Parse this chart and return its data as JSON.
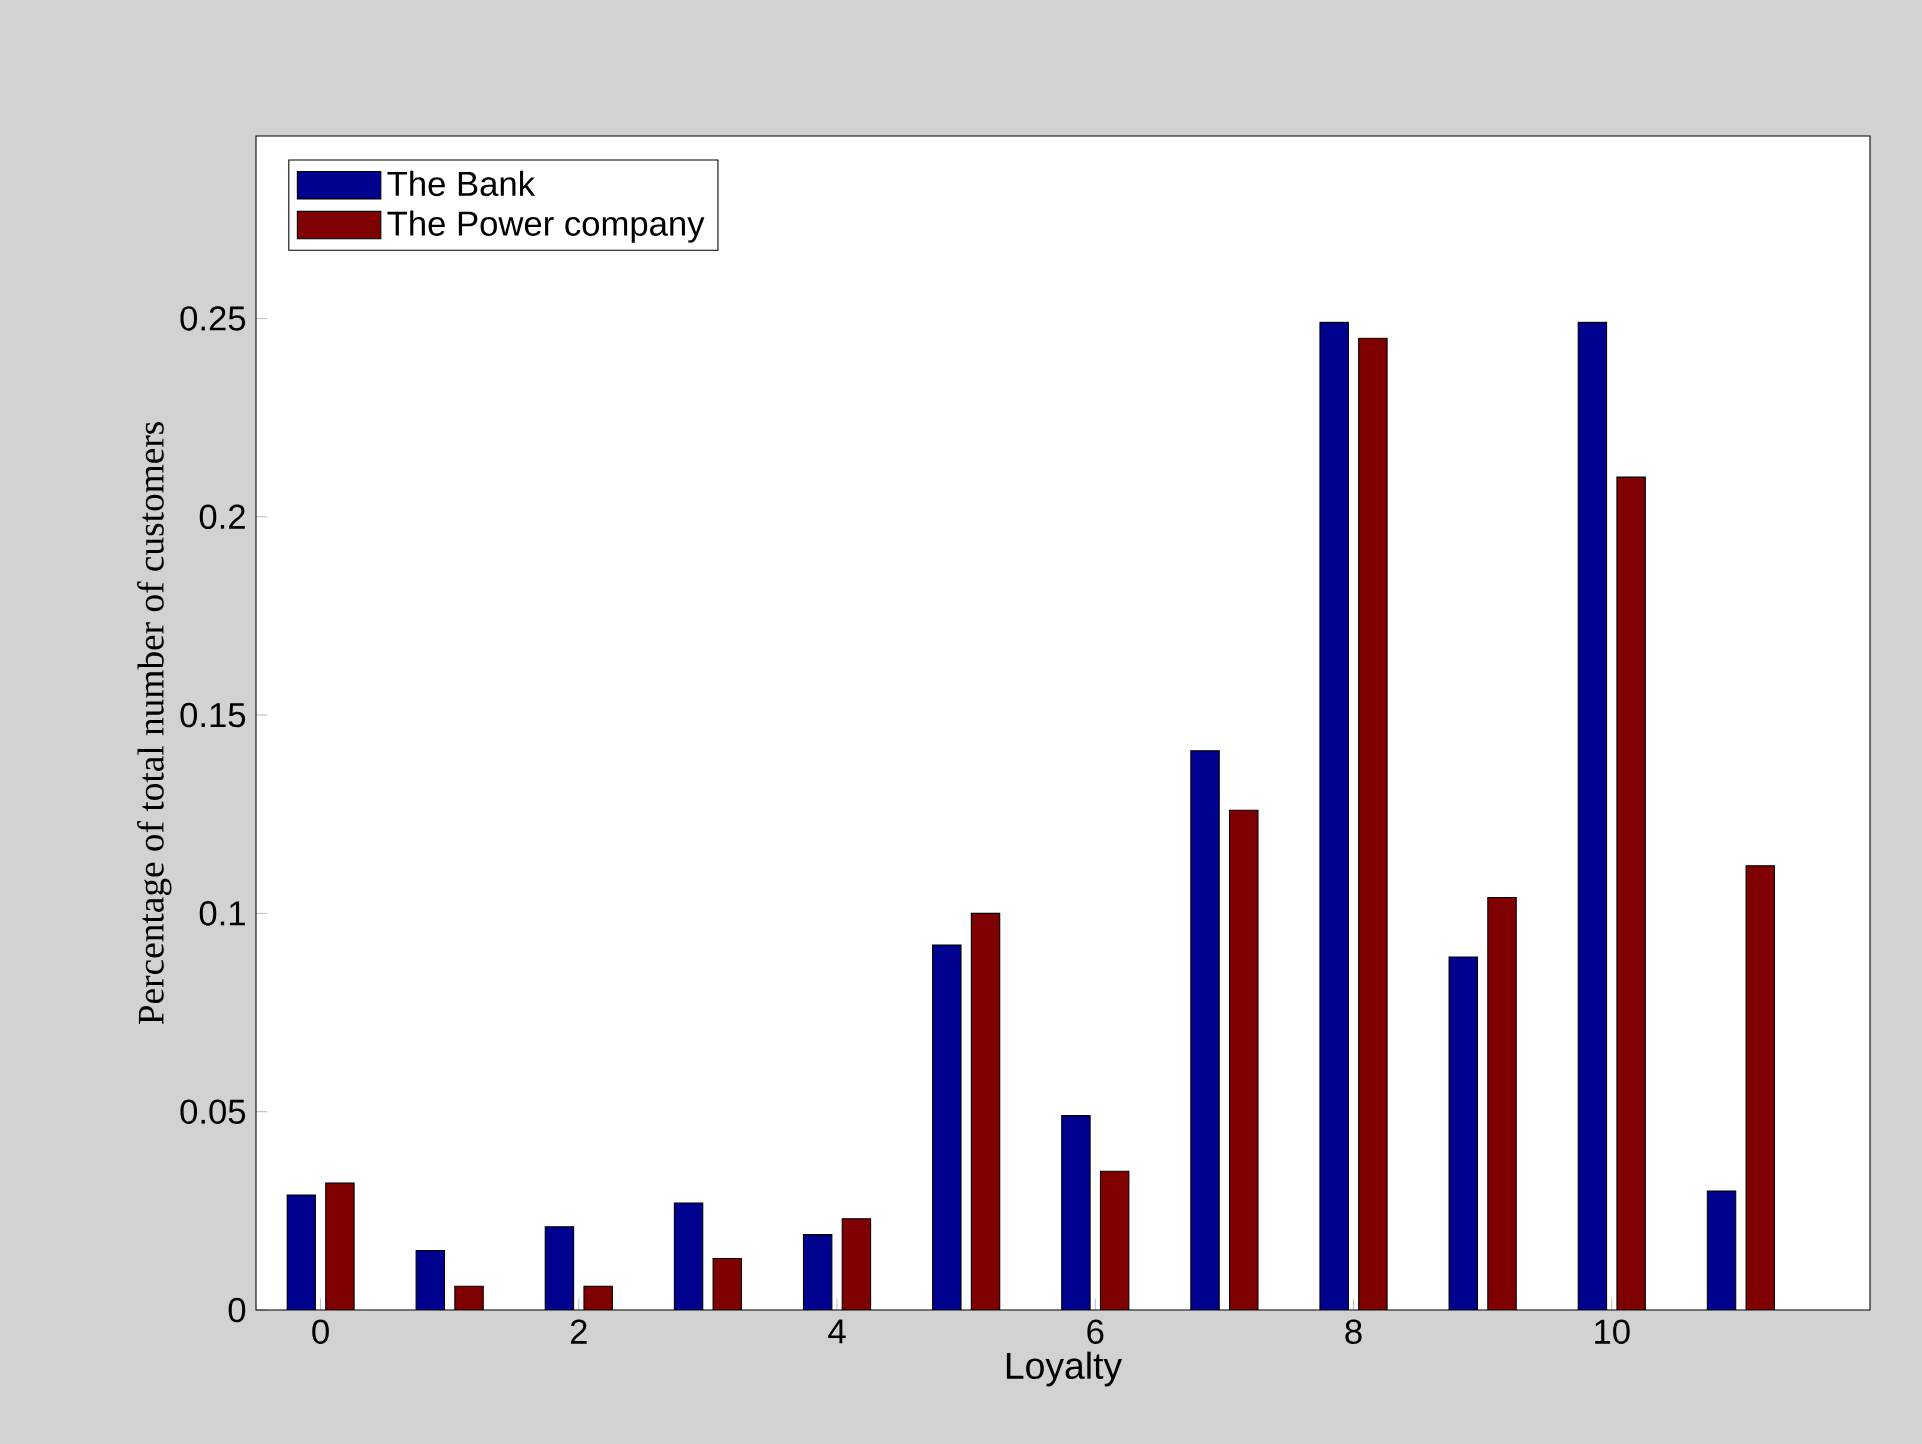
{
  "chart_data": {
    "type": "bar",
    "xlabel": "Loyalty",
    "ylabel": "Percentage of total number of customers",
    "x": [
      0,
      1,
      2,
      3,
      4,
      5,
      6,
      7,
      8,
      9,
      10,
      11
    ],
    "series": [
      {
        "name": "The Bank",
        "color": "#00008f",
        "values": [
          0.029,
          0.015,
          0.021,
          0.027,
          0.019,
          0.092,
          0.049,
          0.141,
          0.249,
          0.089,
          0.249,
          0.03
        ]
      },
      {
        "name": "The Power company",
        "color": "#7f0000",
        "values": [
          0.032,
          0.006,
          0.006,
          0.013,
          0.023,
          0.1,
          0.035,
          0.126,
          0.245,
          0.104,
          0.21,
          0.112
        ]
      }
    ],
    "xlim": [
      -0.5,
      12
    ],
    "ylim": [
      0,
      0.296
    ],
    "xticks": [
      0,
      2,
      4,
      6,
      8,
      10
    ],
    "yticks": [
      0,
      0.05,
      0.1,
      0.15,
      0.2,
      0.25
    ],
    "legend": "top left",
    "grid": false
  }
}
